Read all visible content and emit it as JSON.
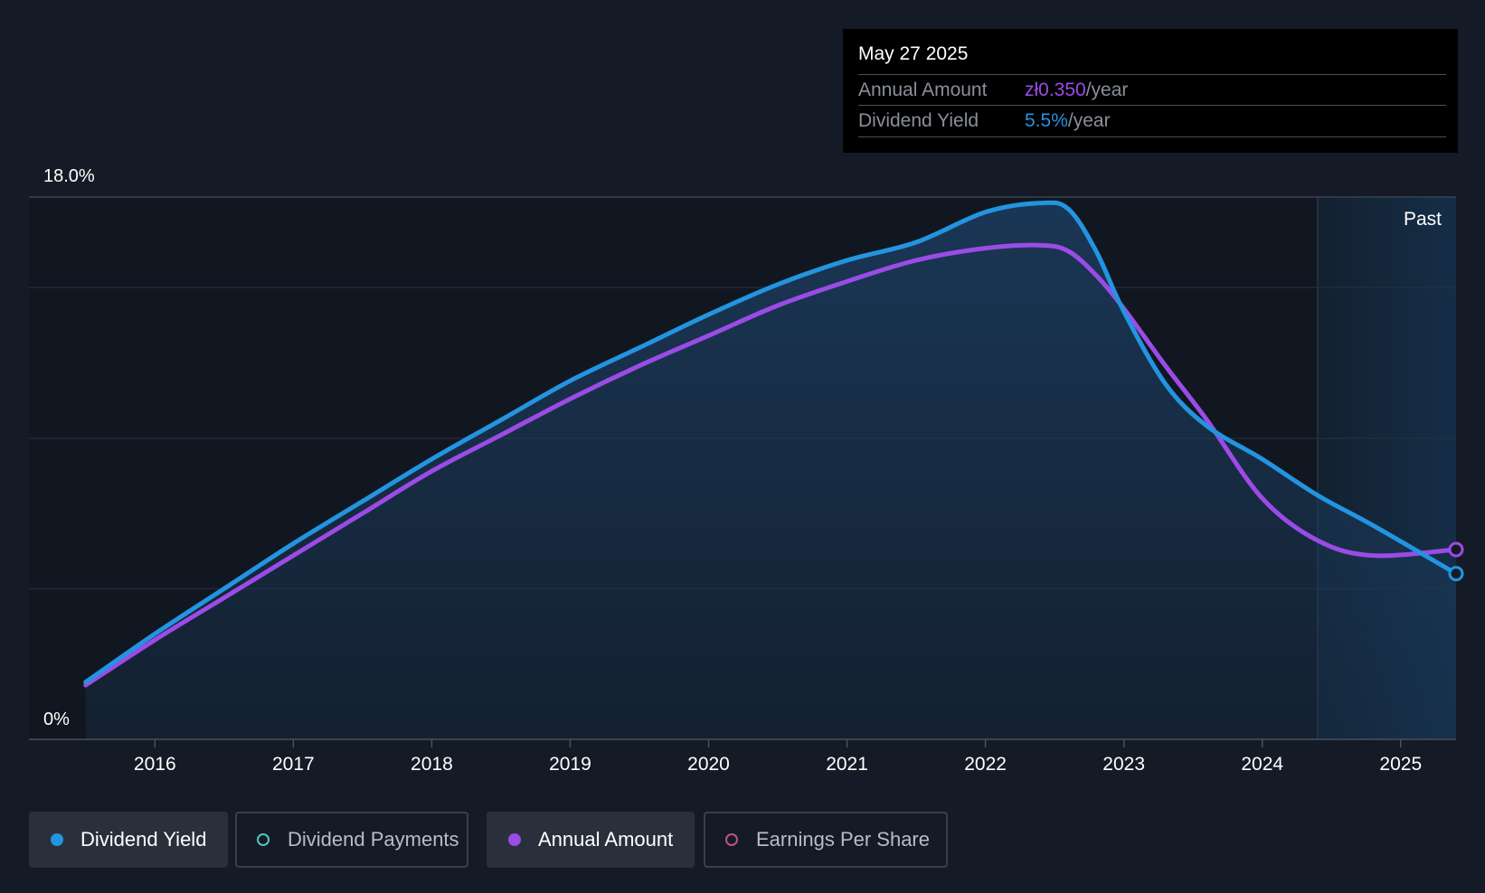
{
  "colors": {
    "background": "#151b26",
    "dividend_yield": "#2394e0",
    "annual_amount": "#9b4be6",
    "dividend_payments": "#4ec9b8",
    "earnings_per_share": "#c0508a",
    "past_region": "#172a3f"
  },
  "tooltip": {
    "date": "May 27 2025",
    "rows": [
      {
        "label": "Annual Amount",
        "value": "zł0.350",
        "unit": "/year",
        "color": "#9b4be6"
      },
      {
        "label": "Dividend Yield",
        "value": "5.5%",
        "unit": "/year",
        "color": "#2394e0"
      }
    ]
  },
  "chart": {
    "past_label": "Past"
  },
  "legend": [
    {
      "label": "Dividend Yield",
      "icon": "filled-circle-icon",
      "active": true,
      "color": "#2394e0"
    },
    {
      "label": "Dividend Payments",
      "icon": "hollow-circle-icon",
      "active": false,
      "color": "#4ec9b8"
    },
    {
      "label": "Annual Amount",
      "icon": "filled-circle-icon",
      "active": true,
      "color": "#9b4be6"
    },
    {
      "label": "Earnings Per Share",
      "icon": "hollow-circle-icon",
      "active": false,
      "color": "#c0508a"
    }
  ],
  "chart_data": {
    "type": "area",
    "title": "",
    "xlabel": "",
    "ylabel": "",
    "ylim": [
      0,
      18
    ],
    "y_tick_labels": [
      "18.0%",
      "0%"
    ],
    "xlim": [
      2015.09,
      2025.4
    ],
    "x_ticks": [
      2016,
      2017,
      2018,
      2019,
      2020,
      2021,
      2022,
      2023,
      2024,
      2025
    ],
    "x_tick_labels": [
      "2016",
      "2017",
      "2018",
      "2019",
      "2020",
      "2021",
      "2022",
      "2023",
      "2024",
      "2025"
    ],
    "past_region_start": 2024.4,
    "grid": true,
    "legend_position": "bottom",
    "series": [
      {
        "name": "Dividend Yield",
        "x": [
          2015.5,
          2016.0,
          2016.5,
          2017.0,
          2017.5,
          2018.0,
          2018.5,
          2019.0,
          2019.5,
          2020.0,
          2020.5,
          2021.0,
          2021.5,
          2022.0,
          2022.4,
          2022.6,
          2022.8,
          2023.0,
          2023.3,
          2023.6,
          2024.0,
          2024.4,
          2024.8,
          2025.4
        ],
        "values": [
          1.9,
          3.5,
          5.0,
          6.5,
          7.9,
          9.3,
          10.6,
          11.9,
          13.0,
          14.1,
          15.1,
          15.9,
          16.5,
          17.5,
          17.8,
          17.6,
          16.2,
          14.2,
          11.8,
          10.4,
          9.3,
          8.1,
          7.1,
          5.5
        ],
        "area": true
      },
      {
        "name": "Annual Amount",
        "x": [
          2015.5,
          2016.0,
          2016.5,
          2017.0,
          2017.5,
          2018.0,
          2018.5,
          2019.0,
          2019.5,
          2020.0,
          2020.5,
          2021.0,
          2021.5,
          2022.0,
          2022.4,
          2022.6,
          2022.8,
          2023.0,
          2023.3,
          2023.6,
          2024.0,
          2024.4,
          2024.8,
          2025.4
        ],
        "values": [
          1.8,
          3.3,
          4.7,
          6.1,
          7.5,
          8.9,
          10.1,
          11.3,
          12.4,
          13.4,
          14.4,
          15.2,
          15.9,
          16.3,
          16.4,
          16.2,
          15.4,
          14.3,
          12.4,
          10.6,
          8.0,
          6.6,
          6.1,
          6.3
        ],
        "area": false
      }
    ]
  }
}
